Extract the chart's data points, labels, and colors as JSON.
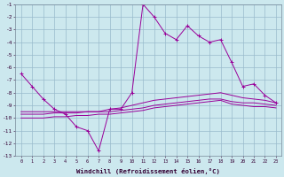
{
  "xlabel": "Windchill (Refroidissement éolien,°C)",
  "bg_color": "#cce8ee",
  "grid_color": "#99bbcc",
  "line_color": "#990099",
  "x": [
    0,
    1,
    2,
    3,
    4,
    5,
    6,
    7,
    8,
    9,
    10,
    11,
    12,
    13,
    14,
    15,
    16,
    17,
    18,
    19,
    20,
    21,
    22,
    23
  ],
  "line1_y": [
    -6.5,
    -7.5,
    -8.5,
    -9.3,
    -9.7,
    -10.7,
    -11.0,
    -12.6,
    -9.3,
    -9.3,
    -8.0,
    -1.0,
    -2.0,
    -3.3,
    -3.8,
    -2.7,
    -3.5,
    -4.0,
    -3.8,
    -5.6,
    -7.5,
    -7.3,
    -8.2,
    -8.8
  ],
  "line2_y": [
    -9.5,
    -9.5,
    -9.5,
    -9.5,
    -9.5,
    -9.5,
    -9.5,
    -9.5,
    -9.3,
    -9.2,
    -9.0,
    -8.8,
    -8.6,
    -8.5,
    -8.4,
    -8.3,
    -8.2,
    -8.1,
    -8.0,
    -8.2,
    -8.4,
    -8.5,
    -8.6,
    -8.8
  ],
  "line3_y": [
    -9.7,
    -9.7,
    -9.7,
    -9.6,
    -9.6,
    -9.6,
    -9.5,
    -9.5,
    -9.5,
    -9.4,
    -9.3,
    -9.2,
    -9.0,
    -8.9,
    -8.8,
    -8.7,
    -8.6,
    -8.5,
    -8.5,
    -8.7,
    -8.8,
    -8.8,
    -8.9,
    -9.0
  ],
  "line4_y": [
    -10.0,
    -10.0,
    -10.0,
    -9.9,
    -9.9,
    -9.8,
    -9.8,
    -9.7,
    -9.7,
    -9.6,
    -9.5,
    -9.4,
    -9.2,
    -9.1,
    -9.0,
    -8.9,
    -8.8,
    -8.7,
    -8.6,
    -8.9,
    -9.0,
    -9.1,
    -9.1,
    -9.2
  ],
  "ylim": [
    -13,
    -1
  ],
  "yticks": [
    -13,
    -12,
    -11,
    -10,
    -9,
    -8,
    -7,
    -6,
    -5,
    -4,
    -3,
    -2,
    -1
  ],
  "xlim": [
    -0.5,
    23.5
  ],
  "xticks": [
    0,
    1,
    2,
    3,
    4,
    5,
    6,
    7,
    8,
    9,
    10,
    11,
    12,
    13,
    14,
    15,
    16,
    17,
    18,
    19,
    20,
    21,
    22,
    23
  ]
}
